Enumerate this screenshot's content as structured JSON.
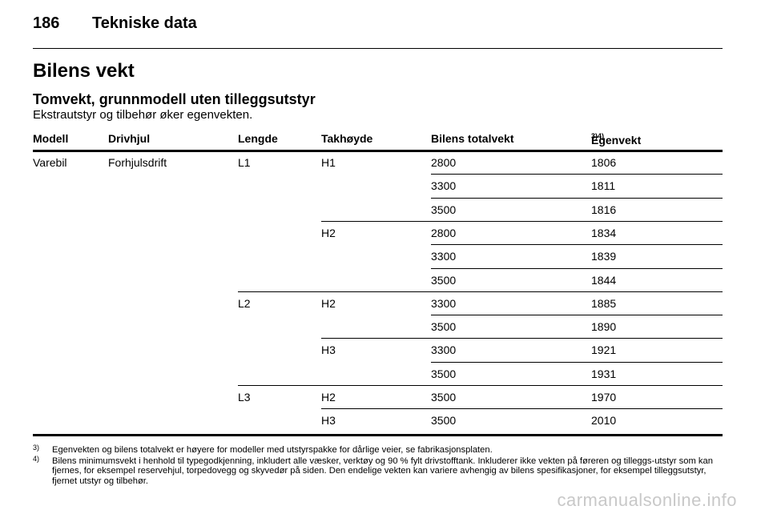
{
  "header": {
    "page_number": "186",
    "chapter": "Tekniske data"
  },
  "section_title": "Bilens vekt",
  "subsection_title": "Tomvekt, grunnmodell uten tilleggsutstyr",
  "intro": "Ekstrautstyr og tilbehør øker egenvekten.",
  "table": {
    "columns": [
      "Modell",
      "Drivhjul",
      "Lengde",
      "Takhøyde",
      "Bilens totalvekt",
      "Egenvekt"
    ],
    "last_column_refs": "3)4)",
    "rows": [
      {
        "modell": "Varebil",
        "drivhjul": "Forhjulsdrift",
        "lengde": "L1",
        "takhoyde": "H1",
        "totalvekt": "2800",
        "egenvekt": "1806"
      },
      {
        "totalvekt": "3300",
        "egenvekt": "1811"
      },
      {
        "totalvekt": "3500",
        "egenvekt": "1816"
      },
      {
        "takhoyde": "H2",
        "totalvekt": "2800",
        "egenvekt": "1834"
      },
      {
        "totalvekt": "3300",
        "egenvekt": "1839"
      },
      {
        "totalvekt": "3500",
        "egenvekt": "1844"
      },
      {
        "lengde": "L2",
        "takhoyde": "H2",
        "totalvekt": "3300",
        "egenvekt": "1885"
      },
      {
        "totalvekt": "3500",
        "egenvekt": "1890"
      },
      {
        "takhoyde": "H3",
        "totalvekt": "3300",
        "egenvekt": "1921"
      },
      {
        "totalvekt": "3500",
        "egenvekt": "1931"
      },
      {
        "lengde": "L3",
        "takhoyde": "H2",
        "totalvekt": "3500",
        "egenvekt": "1970"
      },
      {
        "takhoyde": "H3",
        "totalvekt": "3500",
        "egenvekt": "2010"
      }
    ]
  },
  "footnotes": [
    {
      "mark": "3)",
      "text": "Egenvekten og bilens totalvekt er høyere for modeller med utstyrspakke for dårlige veier, se fabrikasjonsplaten."
    },
    {
      "mark": "4)",
      "text": "Bilens minimumsvekt i henhold til typegodkjenning, inkludert alle væsker, verktøy og 90 % fylt drivstofftank. Inkluderer ikke vekten på føreren og tilleggs-utstyr som kan fjernes, for eksempel reservehjul, torpedovegg og skyvedør på siden. Den endelige vekten kan variere avhengig av bilens spesifikasjoner, for eksempel tilleggsutstyr, fjernet utstyr og tilbehør."
    }
  ],
  "watermark": "carmanualsonline.info"
}
